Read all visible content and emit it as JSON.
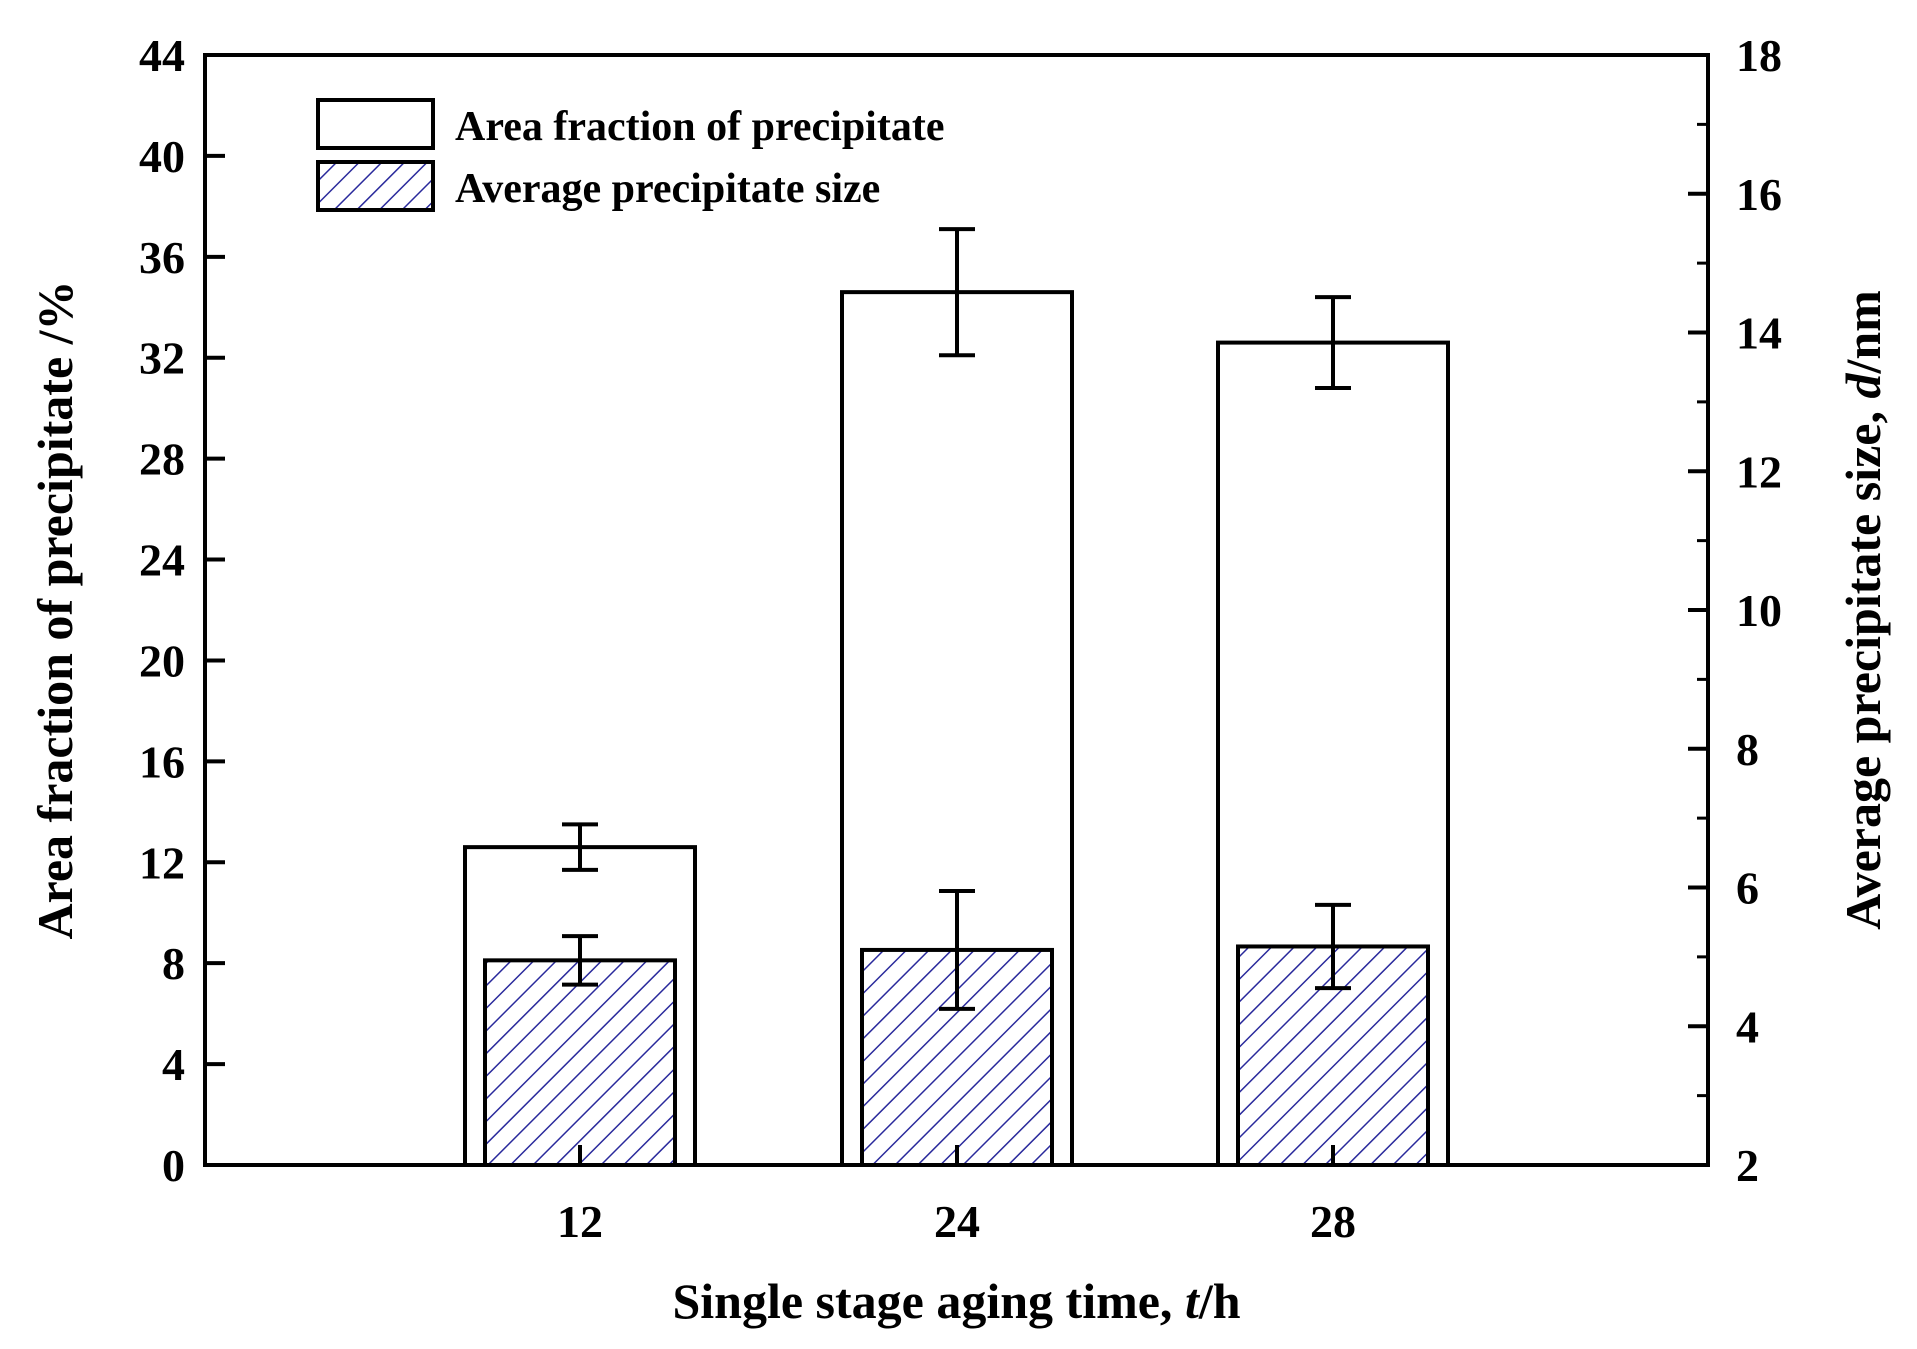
{
  "chart_data": {
    "type": "bar",
    "categories": [
      "12",
      "24",
      "28"
    ],
    "xlabel": {
      "pre": "Single stage aging time, ",
      "italic": "t",
      "post": "/h"
    },
    "y_left": {
      "label": "Area fraction of precipitate /%",
      "lim": [
        0,
        44
      ],
      "ticks": [
        0,
        4,
        8,
        12,
        16,
        20,
        24,
        28,
        32,
        36,
        40,
        44
      ]
    },
    "y_right": {
      "label": {
        "pre": "Average precipitate size, ",
        "italic": "d",
        "post": "/nm"
      },
      "lim": [
        2,
        18
      ],
      "ticks": [
        2,
        4,
        6,
        8,
        10,
        12,
        14,
        16,
        18
      ]
    },
    "series": [
      {
        "name": "Area fraction of precipitate",
        "axis": "left",
        "fill": "#ffffff",
        "pattern": "none",
        "values": [
          12.6,
          34.6,
          32.6
        ],
        "errors": [
          0.9,
          2.5,
          1.8
        ]
      },
      {
        "name": "Average precipitate size",
        "axis": "right",
        "fill": "#ffffff",
        "pattern": "hatch",
        "hatch_color": "#2a2a9c",
        "values": [
          4.95,
          5.1,
          5.15
        ],
        "errors": [
          0.35,
          0.85,
          0.6
        ]
      }
    ],
    "legend_position": "top-left",
    "grid": false
  }
}
